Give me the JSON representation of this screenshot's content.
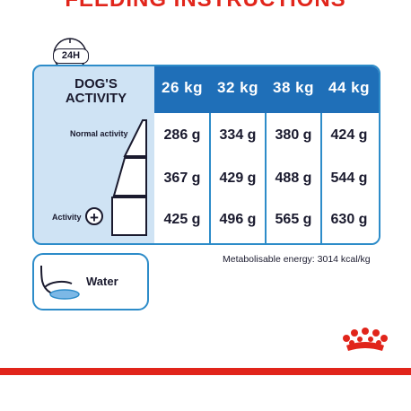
{
  "header": {
    "title": "FEEDING INSTRUCTIONS"
  },
  "clock": {
    "label": "24H"
  },
  "table": {
    "activity_title_line1": "DOG'S",
    "activity_title_line2": "ACTIVITY",
    "columns": [
      "26 kg",
      "32 kg",
      "38 kg",
      "44 kg"
    ],
    "rows": [
      {
        "label": "Normal activity",
        "values": [
          "286 g",
          "334 g",
          "380 g",
          "424 g"
        ]
      },
      {
        "label": "",
        "values": [
          "367 g",
          "429 g",
          "488 g",
          "544 g"
        ]
      },
      {
        "label": "Activity",
        "values": [
          "425 g",
          "496 g",
          "565 g",
          "630 g"
        ]
      }
    ]
  },
  "energy": {
    "text": "Metabolisable energy: 3014 kcal/kg"
  },
  "water": {
    "label": "Water"
  },
  "colors": {
    "brand_red": "#e1251b",
    "header_blue": "#1f6fb8",
    "light_blue": "#cfe3f4",
    "border_blue": "#2d8cc9"
  },
  "icons": [
    "clock-icon",
    "stairs-icon",
    "plus-icon",
    "water-bowl-icon",
    "crown-logo-icon"
  ]
}
